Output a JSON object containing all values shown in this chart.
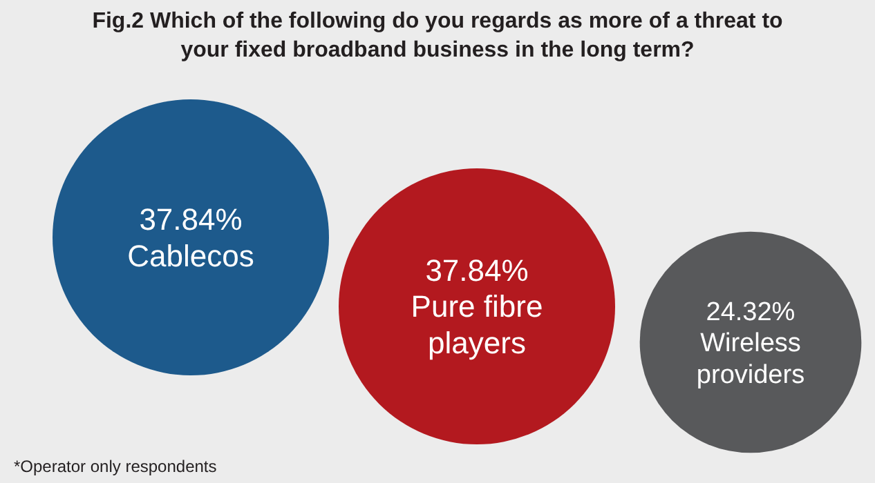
{
  "chart_data": {
    "type": "other",
    "title": "Fig.2 Which of the following do you regards as more of a threat to your fixed broadband business in the long term?",
    "categories": [
      "Cablecos",
      "Pure fibre players",
      "Wireless providers"
    ],
    "values": [
      37.84,
      37.84,
      24.32
    ],
    "value_labels": [
      "37.84%",
      "37.84%",
      "24.32%"
    ],
    "colors": [
      "#1d5a8c",
      "#b3191f",
      "#58595b"
    ],
    "annotations": [
      "*Operator only respondents"
    ]
  }
}
